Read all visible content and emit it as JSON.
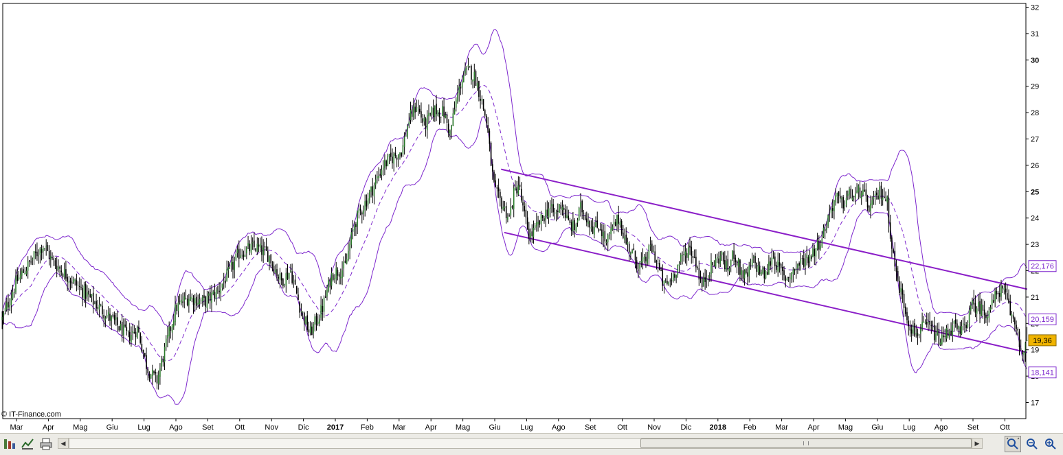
{
  "watermark": "© IT-Finance.com",
  "chart_data": {
    "type": "candlestick",
    "ylim": [
      16.5,
      32.2
    ],
    "y_ticks": [
      17,
      18,
      19,
      20,
      21,
      22,
      23,
      24,
      25,
      26,
      27,
      28,
      29,
      30,
      31,
      32
    ],
    "y_major_ticks": [
      25,
      30
    ],
    "x_labels": [
      {
        "label": "Mar",
        "month": 0
      },
      {
        "label": "Apr",
        "month": 1
      },
      {
        "label": "Mag",
        "month": 2
      },
      {
        "label": "Giu",
        "month": 3
      },
      {
        "label": "Lug",
        "month": 4
      },
      {
        "label": "Ago",
        "month": 5
      },
      {
        "label": "Set",
        "month": 6
      },
      {
        "label": "Ott",
        "month": 7
      },
      {
        "label": "Nov",
        "month": 8
      },
      {
        "label": "Dic",
        "month": 9
      },
      {
        "label": "2017",
        "month": 10,
        "bold": true
      },
      {
        "label": "Feb",
        "month": 11
      },
      {
        "label": "Mar",
        "month": 12
      },
      {
        "label": "Apr",
        "month": 13
      },
      {
        "label": "Mag",
        "month": 14
      },
      {
        "label": "Giu",
        "month": 15
      },
      {
        "label": "Lug",
        "month": 16
      },
      {
        "label": "Ago",
        "month": 17
      },
      {
        "label": "Set",
        "month": 18
      },
      {
        "label": "Ott",
        "month": 19
      },
      {
        "label": "Nov",
        "month": 20
      },
      {
        "label": "Dic",
        "month": 21
      },
      {
        "label": "2018",
        "month": 22,
        "bold": true
      },
      {
        "label": "Feb",
        "month": 23
      },
      {
        "label": "Mar",
        "month": 24
      },
      {
        "label": "Apr",
        "month": 25
      },
      {
        "label": "Mag",
        "month": 26
      },
      {
        "label": "Giu",
        "month": 27
      },
      {
        "label": "Lug",
        "month": 28
      },
      {
        "label": "Ago",
        "month": 29
      },
      {
        "label": "Set",
        "month": 30
      },
      {
        "label": "Ott",
        "month": 31
      }
    ],
    "price_path": [
      [
        -0.5,
        20.0
      ],
      [
        0.0,
        21.6
      ],
      [
        0.6,
        22.6
      ],
      [
        0.85,
        23.0
      ],
      [
        1.1,
        22.4
      ],
      [
        1.6,
        21.8
      ],
      [
        2.1,
        21.2
      ],
      [
        2.6,
        20.6
      ],
      [
        3.1,
        20.0
      ],
      [
        3.5,
        19.5
      ],
      [
        3.8,
        19.8
      ],
      [
        4.1,
        18.3
      ],
      [
        4.4,
        17.8
      ],
      [
        4.7,
        19.2
      ],
      [
        5.0,
        20.6
      ],
      [
        5.4,
        21.0
      ],
      [
        5.9,
        20.8
      ],
      [
        6.3,
        21.2
      ],
      [
        6.7,
        22.0
      ],
      [
        7.0,
        22.7
      ],
      [
        7.5,
        22.9
      ],
      [
        7.9,
        22.6
      ],
      [
        8.3,
        21.6
      ],
      [
        8.6,
        22.0
      ],
      [
        8.9,
        20.6
      ],
      [
        9.2,
        19.6
      ],
      [
        9.6,
        20.6
      ],
      [
        9.9,
        21.9
      ],
      [
        10.3,
        22.1
      ],
      [
        10.6,
        23.8
      ],
      [
        10.9,
        24.5
      ],
      [
        11.2,
        25.2
      ],
      [
        11.5,
        26.0
      ],
      [
        11.8,
        26.3
      ],
      [
        12.1,
        26.6
      ],
      [
        12.3,
        27.7
      ],
      [
        12.55,
        28.3
      ],
      [
        12.8,
        27.5
      ],
      [
        13.1,
        28.1
      ],
      [
        13.4,
        28.0
      ],
      [
        13.6,
        27.2
      ],
      [
        13.8,
        28.5
      ],
      [
        14.0,
        29.4
      ],
      [
        14.2,
        29.6
      ],
      [
        14.4,
        29.3
      ],
      [
        14.6,
        28.4
      ],
      [
        14.75,
        27.6
      ],
      [
        14.9,
        25.9
      ],
      [
        15.0,
        25.0
      ],
      [
        15.2,
        24.6
      ],
      [
        15.45,
        24.0
      ],
      [
        15.6,
        24.9
      ],
      [
        15.75,
        25.3
      ],
      [
        15.9,
        24.2
      ],
      [
        16.1,
        23.3
      ],
      [
        16.3,
        23.6
      ],
      [
        16.5,
        24.0
      ],
      [
        16.7,
        24.4
      ],
      [
        16.9,
        24.1
      ],
      [
        17.1,
        24.6
      ],
      [
        17.3,
        23.8
      ],
      [
        17.5,
        23.6
      ],
      [
        17.7,
        24.4
      ],
      [
        17.9,
        24.0
      ],
      [
        18.1,
        23.6
      ],
      [
        18.3,
        23.7
      ],
      [
        18.5,
        23.0
      ],
      [
        18.7,
        23.6
      ],
      [
        18.9,
        24.0
      ],
      [
        19.1,
        23.1
      ],
      [
        19.3,
        22.7
      ],
      [
        19.5,
        22.2
      ],
      [
        19.7,
        22.3
      ],
      [
        19.9,
        22.9
      ],
      [
        20.1,
        22.3
      ],
      [
        20.3,
        21.4
      ],
      [
        20.5,
        21.6
      ],
      [
        20.7,
        22.1
      ],
      [
        20.9,
        22.5
      ],
      [
        21.1,
        22.9
      ],
      [
        21.3,
        22.4
      ],
      [
        21.5,
        21.4
      ],
      [
        21.7,
        22.0
      ],
      [
        21.9,
        22.3
      ],
      [
        22.1,
        22.6
      ],
      [
        22.3,
        22.0
      ],
      [
        22.5,
        22.7
      ],
      [
        22.7,
        22.0
      ],
      [
        22.9,
        21.7
      ],
      [
        23.1,
        22.4
      ],
      [
        23.3,
        22.0
      ],
      [
        23.5,
        21.8
      ],
      [
        23.7,
        22.6
      ],
      [
        23.9,
        22.1
      ],
      [
        24.1,
        21.7
      ],
      [
        24.3,
        21.9
      ],
      [
        24.5,
        22.2
      ],
      [
        24.7,
        22.4
      ],
      [
        24.9,
        22.6
      ],
      [
        25.1,
        22.9
      ],
      [
        25.3,
        23.4
      ],
      [
        25.5,
        24.2
      ],
      [
        25.7,
        24.8
      ],
      [
        25.9,
        24.5
      ],
      [
        26.1,
        24.9
      ],
      [
        26.3,
        24.8
      ],
      [
        26.5,
        25.1
      ],
      [
        26.7,
        24.4
      ],
      [
        26.9,
        24.6
      ],
      [
        27.1,
        25.0
      ],
      [
        27.3,
        24.7
      ],
      [
        27.45,
        23.0
      ],
      [
        27.6,
        21.8
      ],
      [
        27.8,
        20.9
      ],
      [
        28.0,
        20.0
      ],
      [
        28.2,
        19.6
      ],
      [
        28.4,
        19.8
      ],
      [
        28.6,
        19.9
      ],
      [
        28.8,
        19.6
      ],
      [
        29.0,
        19.3
      ],
      [
        29.2,
        19.7
      ],
      [
        29.4,
        19.9
      ],
      [
        29.6,
        19.6
      ],
      [
        29.8,
        20.1
      ],
      [
        30.0,
        20.7
      ],
      [
        30.2,
        20.6
      ],
      [
        30.4,
        20.4
      ],
      [
        30.6,
        20.7
      ],
      [
        30.8,
        21.3
      ],
      [
        31.0,
        21.1
      ],
      [
        31.2,
        20.3
      ],
      [
        31.4,
        19.8
      ],
      [
        31.55,
        18.6
      ],
      [
        31.7,
        19.36
      ]
    ],
    "channel_upper": [
      [
        15.2,
        25.85
      ],
      [
        31.7,
        21.3
      ]
    ],
    "channel_lower": [
      [
        15.3,
        23.45
      ],
      [
        31.7,
        18.9
      ]
    ],
    "last_values": [
      {
        "label": "22,176",
        "value": 22.176,
        "type": "band-upper"
      },
      {
        "label": "20,159",
        "value": 20.159,
        "type": "band-mid"
      },
      {
        "label": "19,36",
        "value": 19.36,
        "type": "price"
      },
      {
        "label": "18,141",
        "value": 18.141,
        "type": "band-lower"
      }
    ]
  },
  "colors": {
    "up_candle": "#2a7a2a",
    "down_candle": "#000000",
    "bands": "#7d26cd",
    "channel": "#8b1fc8",
    "price_tag_bg": "#f0b400",
    "axis": "#000000"
  },
  "toolbar": {
    "icons": [
      "chart-type-icon",
      "indicators-icon",
      "print-icon",
      "scroll-left-icon",
      "scroll-right-icon",
      "zoom-fit-icon",
      "zoom-out-icon",
      "zoom-in-icon"
    ]
  }
}
